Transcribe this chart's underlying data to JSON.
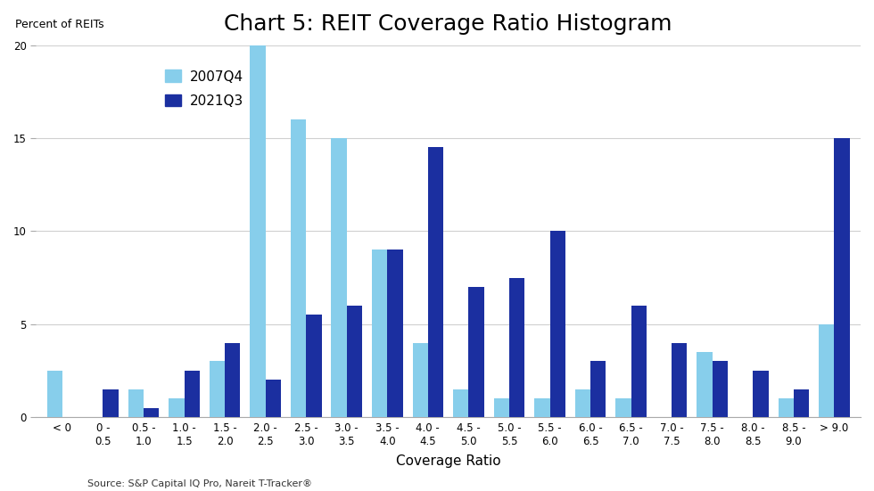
{
  "title": "Chart 5: REIT Coverage Ratio Histogram",
  "ylabel": "Percent of REITs",
  "xlabel": "Coverage Ratio",
  "source": "Source: S&P Capital IQ Pro, Nareit T-Tracker®",
  "cat_line1": [
    "< 0",
    "0 -",
    "0.5 -",
    "1.0 -",
    "1.5 -",
    "2.0 -",
    "2.5 -",
    "3.0 -",
    "3.5 -",
    "4.0 -",
    "4.5 -",
    "5.0 -",
    "5.5 -",
    "6.0 -",
    "6.5 -",
    "7.0 -",
    "7.5 -",
    "8.0 -",
    "8.5 -",
    "> 9.0"
  ],
  "cat_line2": [
    "",
    "0.5",
    "1.0",
    "1.5",
    "2.0",
    "2.5",
    "3.0",
    "3.5",
    "4.0",
    "4.5",
    "5.0",
    "5.5",
    "6.0",
    "6.5",
    "7.0",
    "7.5",
    "8.0",
    "8.5",
    "9.0",
    ""
  ],
  "values_2007Q4": [
    2.5,
    0.0,
    1.5,
    1.0,
    3.0,
    20.0,
    16.0,
    15.0,
    9.0,
    4.0,
    1.5,
    1.0,
    1.0,
    1.5,
    1.0,
    0.0,
    3.5,
    0.0,
    1.0,
    5.0
  ],
  "values_2021Q3": [
    0.0,
    1.5,
    0.5,
    2.5,
    4.0,
    2.0,
    5.5,
    6.0,
    9.0,
    14.5,
    7.0,
    7.5,
    10.0,
    3.0,
    6.0,
    4.0,
    3.0,
    2.5,
    1.5,
    15.0
  ],
  "color_2007Q4": "#87CEEB",
  "color_2021Q3": "#1B2FA0",
  "ylim": [
    0,
    20
  ],
  "yticks": [
    0,
    5,
    10,
    15,
    20
  ],
  "legend_2007Q4": "2007Q4",
  "legend_2021Q3": "2021Q3",
  "background_color": "#ffffff",
  "title_fontsize": 18,
  "label_fontsize": 11,
  "tick_fontsize": 8.5
}
